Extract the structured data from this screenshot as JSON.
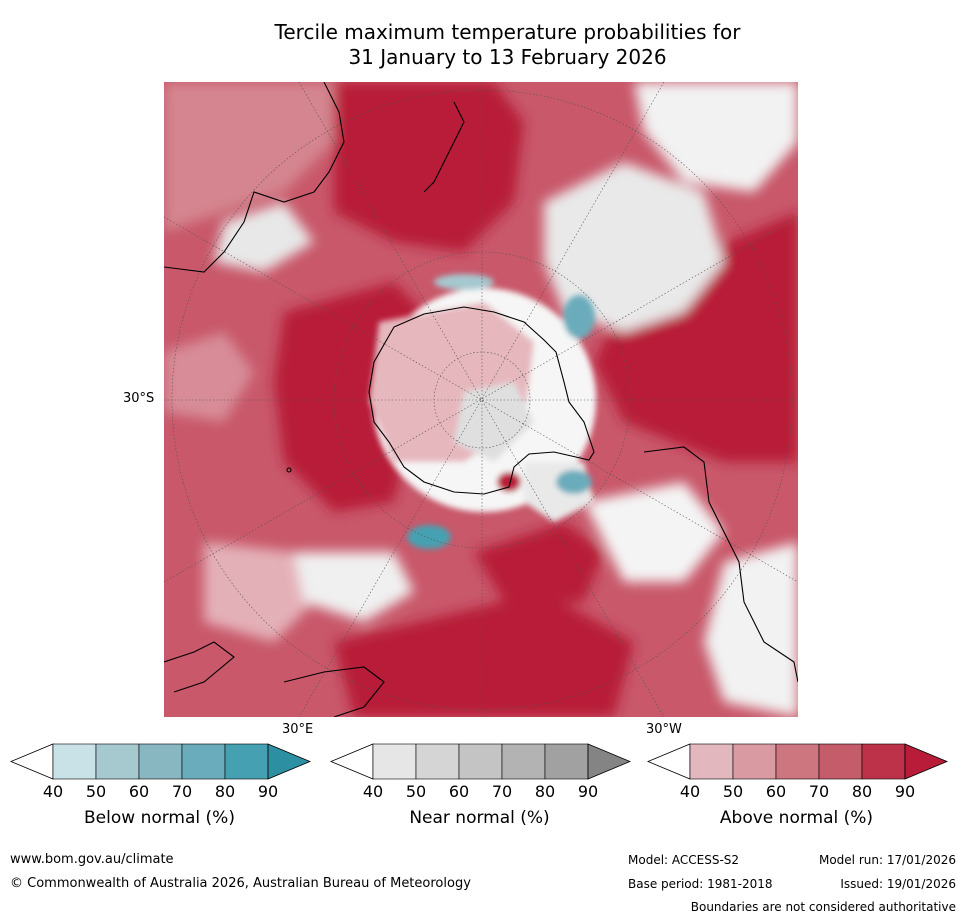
{
  "title_line1": "Tercile maximum temperature probabilities for",
  "title_line2": "31 January to 13 February 2026",
  "map": {
    "latitude_label": "30°S",
    "longitude_labels": [
      "30°E",
      "30°W"
    ]
  },
  "colorbars": [
    {
      "title": "Below normal (%)",
      "ticks": [
        "40",
        "50",
        "60",
        "70",
        "80",
        "90"
      ],
      "colors": [
        "#ffffff",
        "#c9e2e8",
        "#a6c8cf",
        "#88b7c2",
        "#6aacbb",
        "#45a1b2",
        "#2d8fa2"
      ]
    },
    {
      "title": "Near normal (%)",
      "ticks": [
        "40",
        "50",
        "60",
        "70",
        "80",
        "90"
      ],
      "colors": [
        "#ffffff",
        "#e6e6e6",
        "#d5d5d5",
        "#c4c4c4",
        "#b3b3b3",
        "#a1a1a1",
        "#848484"
      ]
    },
    {
      "title": "Above normal (%)",
      "ticks": [
        "40",
        "50",
        "60",
        "70",
        "80",
        "90"
      ],
      "colors": [
        "#ffffff",
        "#e2b7bd",
        "#d99aa2",
        "#cd7680",
        "#c45c69",
        "#bd3248",
        "#b81c38"
      ]
    }
  ],
  "footer": {
    "website": "www.bom.gov.au/climate",
    "copyright": "© Commonwealth of Australia 2026, Australian Bureau of Meteorology",
    "model": "Model: ACCESS-S2",
    "model_run": "Model run: 17/01/2026",
    "base_period": "Base period: 1981-2018",
    "issued": "Issued: 19/01/2026",
    "disclaimer": "Boundaries are not considered authoritative"
  }
}
